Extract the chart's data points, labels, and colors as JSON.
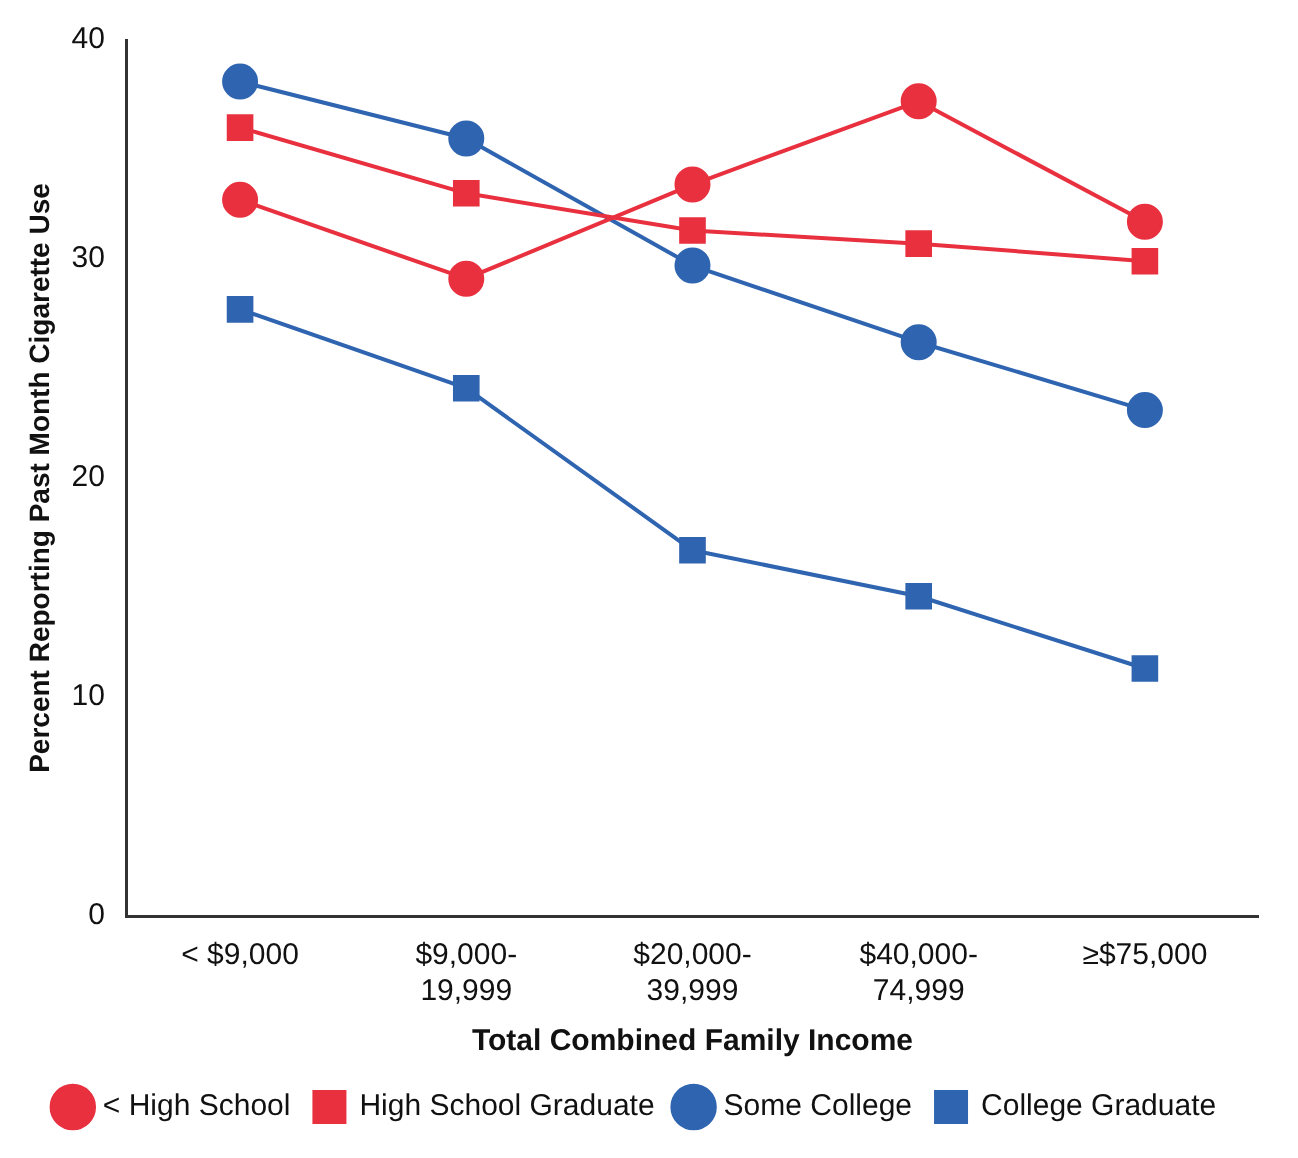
{
  "chart_data": {
    "type": "line",
    "xlabel": "Total Combined Family Income",
    "ylabel": "Percent Reporting Past Month Cigarette Use",
    "categories": [
      "< $9,000",
      "$9,000-19,999",
      "$20,000-39,999",
      "$40,000-74,999",
      "≥$75,000"
    ],
    "series": [
      {
        "name": "< High School",
        "color": "#e8303f",
        "marker": "circle",
        "values": [
          32.7,
          29.1,
          33.4,
          37.2,
          31.7
        ]
      },
      {
        "name": "High School Graduate",
        "color": "#e8303f",
        "marker": "square",
        "values": [
          36.0,
          33.0,
          31.3,
          30.7,
          29.9
        ]
      },
      {
        "name": "Some College",
        "color": "#2f64b0",
        "marker": "circle",
        "values": [
          38.1,
          35.5,
          29.7,
          26.2,
          23.1
        ]
      },
      {
        "name": "College Graduate",
        "color": "#2f64b0",
        "marker": "square",
        "values": [
          27.7,
          24.1,
          16.7,
          14.6,
          11.3
        ]
      }
    ],
    "ylim": [
      0,
      40
    ],
    "yticks": [
      0,
      10,
      20,
      30,
      40
    ],
    "grid": false,
    "legend": "bottom"
  }
}
